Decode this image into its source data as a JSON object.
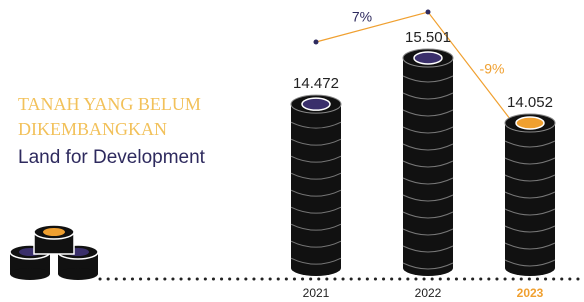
{
  "chart_data": {
    "type": "bar",
    "title_lines": [
      "TANAH YANG BELUM",
      "DIKEMBANGKAN"
    ],
    "subtitle": "Land for Development",
    "categories": [
      "2021",
      "2022",
      "2023"
    ],
    "values": [
      14472,
      15501,
      14052
    ],
    "value_labels": [
      "14.472",
      "15.501",
      "14.052"
    ],
    "growth": [
      {
        "value": 7,
        "label": "7%"
      },
      {
        "value": -9,
        "label": "-9%"
      }
    ],
    "highlight_color": "#f0a030",
    "color": "#111111"
  }
}
